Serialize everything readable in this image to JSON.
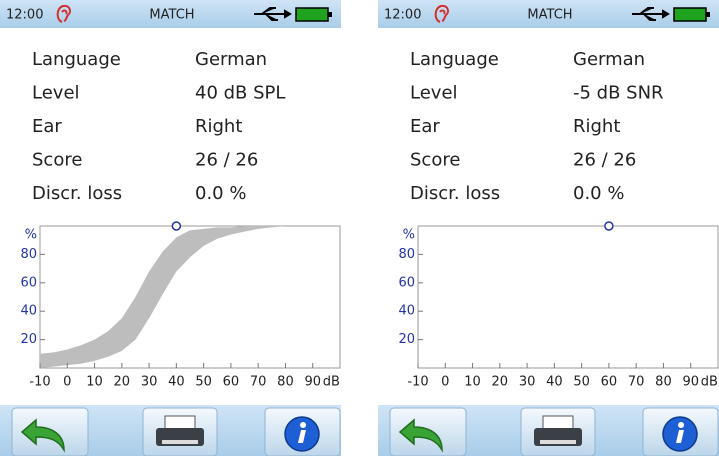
{
  "screens": [
    {
      "status": {
        "time": "12:00",
        "title": "MATCH"
      },
      "rows": [
        {
          "label": "Language",
          "value": "German"
        },
        {
          "label": "Level",
          "value": "40 dB SPL"
        },
        {
          "label": "Ear",
          "value": "Right"
        },
        {
          "label": "Score",
          "value": "26 / 26"
        },
        {
          "label": "Discr. loss",
          "value": "0.0 %"
        }
      ],
      "chart_data": {
        "type": "band",
        "x_label": "dB",
        "y_label": "%",
        "xlim": [
          -10,
          100
        ],
        "ylim": [
          0,
          100
        ],
        "xticks": [
          -10,
          0,
          10,
          20,
          30,
          40,
          50,
          60,
          70,
          80,
          90
        ],
        "yticks": [
          20,
          40,
          60,
          80
        ],
        "color": "#bdbdbd",
        "point_color": "#2233aa",
        "band": {
          "x": [
            -10,
            -5,
            0,
            5,
            10,
            15,
            20,
            25,
            30,
            35,
            40,
            45,
            50,
            55,
            60,
            65,
            70,
            75,
            80,
            85
          ],
          "lower": [
            0,
            1,
            2,
            3,
            5,
            8,
            12,
            20,
            35,
            52,
            68,
            78,
            86,
            91,
            94,
            96,
            98,
            99,
            100,
            100
          ],
          "upper": [
            10,
            11,
            13,
            16,
            20,
            26,
            35,
            50,
            68,
            82,
            92,
            97,
            98,
            99,
            99,
            100,
            100,
            100,
            100,
            100
          ]
        },
        "point": {
          "x": 40,
          "y": 100
        }
      }
    },
    {
      "status": {
        "time": "12:00",
        "title": "MATCH"
      },
      "rows": [
        {
          "label": "Language",
          "value": "German"
        },
        {
          "label": "Level",
          "value": "-5 dB SNR"
        },
        {
          "label": "Ear",
          "value": "Right"
        },
        {
          "label": "Score",
          "value": "26 / 26"
        },
        {
          "label": "Discr. loss",
          "value": "0.0 %"
        }
      ],
      "chart_data": {
        "type": "band",
        "x_label": "dB",
        "y_label": "%",
        "xlim": [
          -10,
          100
        ],
        "ylim": [
          0,
          100
        ],
        "xticks": [
          -10,
          0,
          10,
          20,
          30,
          40,
          50,
          60,
          70,
          80,
          90
        ],
        "yticks": [
          20,
          40,
          60,
          80
        ],
        "color": "#bdbdbd",
        "point_color": "#2233aa",
        "point": {
          "x": 60,
          "y": 100
        }
      }
    }
  ]
}
